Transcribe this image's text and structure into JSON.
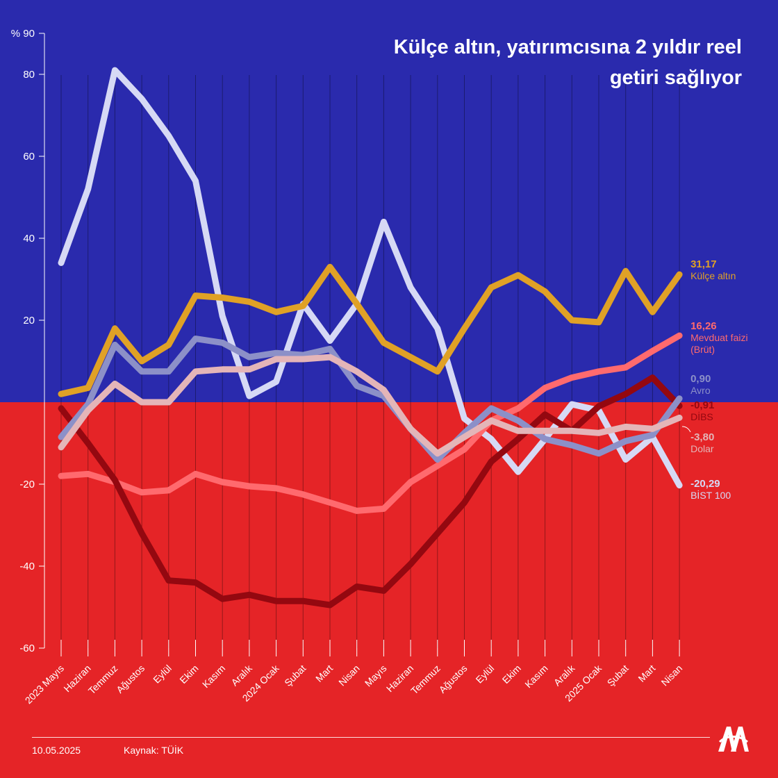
{
  "title": "Külçe altın, yatırımcısına 2 yıldır reel getiri sağlıyor",
  "footer": {
    "date": "10.05.2025",
    "source": "Kaynak: TÜİK"
  },
  "logo_icon": "aa-logo",
  "colors": {
    "positive_bg": "#2a2aad",
    "negative_bg": "#e52427"
  },
  "chart_data": {
    "type": "line",
    "y_unit": "%",
    "ylim": [
      -60,
      90
    ],
    "y_ticks": [
      -60,
      -40,
      -20,
      20,
      40,
      60,
      80,
      90
    ],
    "categories": [
      "2023 Mayıs",
      "Haziran",
      "Temmuz",
      "Ağustos",
      "Eylül",
      "Ekim",
      "Kasım",
      "Aralık",
      "2024 Ocak",
      "Şubat",
      "Mart",
      "Nisan",
      "Mayıs",
      "Haziran",
      "Temmuz",
      "Ağustos",
      "Eylül",
      "Ekim",
      "Kasım",
      "Aralık",
      "2025 Ocak",
      "Şubat",
      "Mart",
      "Nisan"
    ],
    "grid": "vertical",
    "series": [
      {
        "name": "BİST 100",
        "color": "#d6d9f5",
        "final_label": "-20,29",
        "values": [
          34,
          52,
          81,
          74,
          65,
          54,
          21,
          1.5,
          5,
          24,
          15,
          24,
          44,
          28,
          18,
          -4,
          -9,
          -17,
          -9,
          -0.5,
          -2,
          -14,
          -8.5,
          -20.29
        ]
      },
      {
        "name": "Külçe altın",
        "color": "#e0a126",
        "final_label": "31,17",
        "values": [
          2,
          3.5,
          18,
          10,
          14,
          26,
          25.5,
          24.5,
          22,
          23.5,
          33,
          24,
          14.5,
          11,
          7.5,
          18,
          28,
          31,
          27,
          20,
          19.5,
          32,
          22,
          31.17
        ]
      },
      {
        "name": "Mevduat faizi (Brüt)",
        "color": "#ff6a6e",
        "final_label": "16,26",
        "values": [
          -18,
          -17.5,
          -19.5,
          -22,
          -21.5,
          -17.5,
          -19.5,
          -20.5,
          -21,
          -22.5,
          -24.5,
          -26.5,
          -26,
          -19.5,
          -15.5,
          -11.5,
          -4.5,
          -1.5,
          3.5,
          6,
          7.5,
          8.5,
          12.5,
          16.26
        ]
      },
      {
        "name": "DİBS",
        "color": "#940810",
        "final_label": "-0,91",
        "values": [
          -1.5,
          -10,
          -19,
          -32,
          -43.5,
          -44,
          -48,
          -47,
          -48.5,
          -48.5,
          -49.5,
          -45,
          -46,
          -39.5,
          -32,
          -24.5,
          -14.5,
          -9,
          -3,
          -7,
          -1,
          2,
          6,
          -0.91
        ]
      },
      {
        "name": "Avro",
        "color": "#8c90c8",
        "final_label": "0,90",
        "values": [
          -8.5,
          -0.5,
          14,
          7.5,
          7.5,
          15.5,
          14.5,
          11,
          12,
          11.5,
          13,
          4,
          1.5,
          -6.5,
          -14,
          -7.5,
          -1.5,
          -4.5,
          -9,
          -10.5,
          -12.5,
          -9.5,
          -8,
          0.9
        ]
      },
      {
        "name": "Dolar",
        "color": "#e4b5b8",
        "final_label": "-3,80",
        "values": [
          -11,
          -2,
          4.5,
          0,
          0,
          7.5,
          8,
          8,
          10.5,
          10.5,
          11,
          7.5,
          3,
          -6.5,
          -12.5,
          -8.5,
          -4.5,
          -7,
          -7,
          -7,
          -7.5,
          -6,
          -6.5,
          -3.8
        ]
      }
    ]
  }
}
